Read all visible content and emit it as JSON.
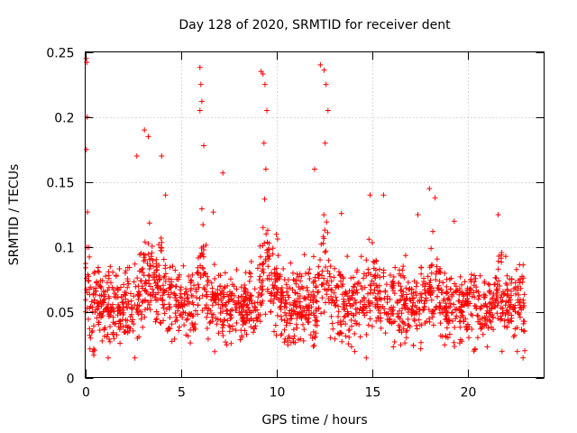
{
  "chart_data": {
    "type": "scatter",
    "title": "Day 128 of 2020, SRMTID for receiver dent",
    "xlabel": "GPS time / hours",
    "ylabel": "SRMTID / TECUs",
    "xlim": [
      0,
      24
    ],
    "ylim": [
      0,
      0.25
    ],
    "xticks": [
      0,
      5,
      10,
      15,
      20
    ],
    "xtick_labels": [
      "0",
      "5",
      "10",
      "15",
      "20"
    ],
    "yticks": [
      0,
      0.05,
      0.1,
      0.15,
      0.2,
      0.25
    ],
    "ytick_labels": [
      "0",
      "0.05",
      "0.1",
      "0.15",
      "0.2",
      "0.25"
    ],
    "grid": true,
    "marker": "plus",
    "color": "#ff0000",
    "data_span_hours": [
      0,
      23
    ],
    "series": [
      {
        "name": "SRMTID",
        "note": "dense cloud of ~2000 points; baseline 0.02-0.09 TECU with bursts; representative envelope points listed",
        "points": [
          [
            0.05,
            0.245
          ],
          [
            0.08,
            0.242
          ],
          [
            0.1,
            0.2
          ],
          [
            0.06,
            0.175
          ],
          [
            0.12,
            0.127
          ],
          [
            0.2,
            0.1
          ],
          [
            3.1,
            0.19
          ],
          [
            3.3,
            0.185
          ],
          [
            2.7,
            0.17
          ],
          [
            4.0,
            0.17
          ],
          [
            4.2,
            0.14
          ],
          [
            6.0,
            0.238
          ],
          [
            6.05,
            0.225
          ],
          [
            6.1,
            0.212
          ],
          [
            6.0,
            0.205
          ],
          [
            6.2,
            0.178
          ],
          [
            6.7,
            0.127
          ],
          [
            7.2,
            0.157
          ],
          [
            9.2,
            0.235
          ],
          [
            9.3,
            0.233
          ],
          [
            9.4,
            0.225
          ],
          [
            9.5,
            0.205
          ],
          [
            9.35,
            0.18
          ],
          [
            9.45,
            0.16
          ],
          [
            10.0,
            0.11
          ],
          [
            12.3,
            0.24
          ],
          [
            12.5,
            0.236
          ],
          [
            12.6,
            0.225
          ],
          [
            12.7,
            0.205
          ],
          [
            12.55,
            0.18
          ],
          [
            12.0,
            0.16
          ],
          [
            13.4,
            0.126
          ],
          [
            14.9,
            0.14
          ],
          [
            15.6,
            0.14
          ],
          [
            17.4,
            0.125
          ],
          [
            18.0,
            0.145
          ],
          [
            18.3,
            0.138
          ],
          [
            19.3,
            0.12
          ],
          [
            21.6,
            0.125
          ],
          [
            0.4,
            0.02
          ],
          [
            1.2,
            0.015
          ],
          [
            2.6,
            0.015
          ],
          [
            7.4,
            0.025
          ],
          [
            10.6,
            0.025
          ],
          [
            14.1,
            0.02
          ],
          [
            14.7,
            0.015
          ],
          [
            18.8,
            0.025
          ],
          [
            20.4,
            0.022
          ],
          [
            21.8,
            0.02
          ],
          [
            22.6,
            0.02
          ],
          [
            22.9,
            0.015
          ]
        ]
      }
    ]
  }
}
